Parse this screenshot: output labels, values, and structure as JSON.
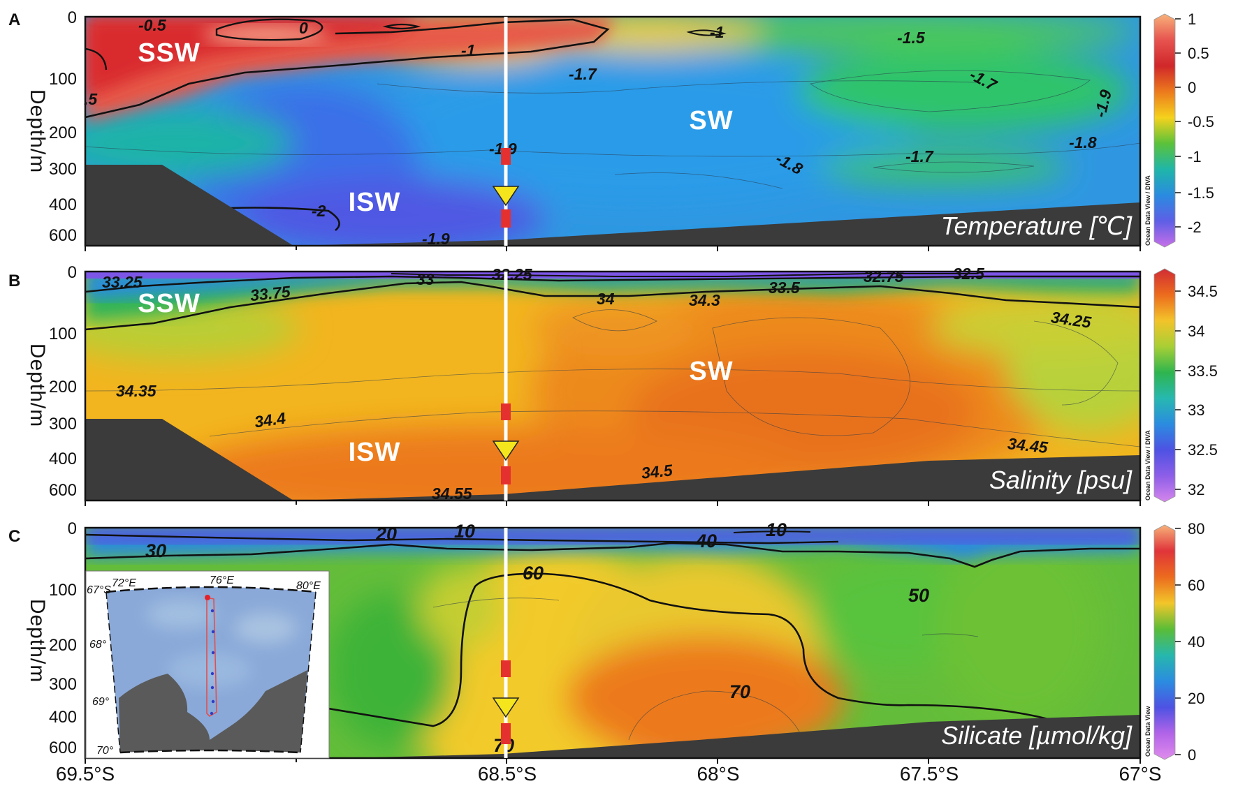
{
  "chart_data": [
    {
      "type": "heatmap",
      "panel_letter": "A",
      "title": "Temperature [℃]",
      "ylabel": "Depth/m",
      "xlabel": "",
      "x_ticks": [
        "69.5°S",
        "68.5°S",
        "68°S",
        "67.5°S",
        "67°S"
      ],
      "x_range": [
        69.5,
        67.0
      ],
      "y_ticks": [
        "0",
        "100",
        "200",
        "300",
        "400",
        "600"
      ],
      "y_range": [
        0,
        600
      ],
      "colorbar_ticks": [
        "1",
        "0.5",
        "0",
        "-0.5",
        "-1",
        "-1.5",
        "-2"
      ],
      "colorbar_range": [
        -2.2,
        1
      ],
      "colorbar_stops": [
        "#f7b27a",
        "#e7544f",
        "#d0272a",
        "#ec7a1d",
        "#f5d21d",
        "#5bc23a",
        "#1fb6a9",
        "#2a8be0",
        "#5e5fe6",
        "#c96fe8"
      ],
      "water_masses": [
        "SSW",
        "SW",
        "ISW"
      ],
      "contour_labels": [
        "-0.5",
        "0",
        "-1",
        "-1",
        "-1.5",
        "-1.7",
        "-1.7",
        "-1.9",
        "-1.9",
        "-1.8",
        "-1.8",
        "-1.7",
        "-2",
        "-1.9",
        ".5"
      ],
      "watermark": "Ocean Data View / DIVA"
    },
    {
      "type": "heatmap",
      "panel_letter": "B",
      "title": "Salinity [psu]",
      "ylabel": "Depth/m",
      "xlabel": "",
      "x_ticks": [
        "69.5°S",
        "68.5°S",
        "68°S",
        "67.5°S",
        "67°S"
      ],
      "x_range": [
        69.5,
        67.0
      ],
      "y_ticks": [
        "0",
        "100",
        "200",
        "300",
        "400",
        "600"
      ],
      "y_range": [
        0,
        600
      ],
      "colorbar_ticks": [
        "34.5",
        "34",
        "33.5",
        "33",
        "32.5",
        "32"
      ],
      "colorbar_range": [
        32,
        34.8
      ],
      "colorbar_stops": [
        "#d12c34",
        "#ec6b1e",
        "#f3c32a",
        "#a8cf35",
        "#2fb54e",
        "#27b8b0",
        "#2b8ce0",
        "#4e52e3",
        "#8e5ee8",
        "#d586ec"
      ],
      "water_masses": [
        "SSW",
        "SW",
        "ISW"
      ],
      "contour_labels": [
        "33.25",
        "33.75",
        "33",
        "32.25",
        "34",
        "34.3",
        "33.5",
        "32.75",
        "32.5",
        "34.25",
        "34.35",
        "34.4",
        "34.45",
        "34.5",
        "34.55"
      ],
      "watermark": "Ocean Data View / DIVA"
    },
    {
      "type": "heatmap",
      "panel_letter": "C",
      "title": "Silicate [µmol/kg]",
      "ylabel": "Depth/m",
      "xlabel": "",
      "x_ticks": [
        "69.5°S",
        "68.5°S",
        "68°S",
        "67.5°S",
        "67°S"
      ],
      "x_range": [
        69.5,
        67.0
      ],
      "y_ticks": [
        "0",
        "100",
        "200",
        "300",
        "400",
        "600"
      ],
      "y_range": [
        0,
        600
      ],
      "colorbar_ticks": [
        "80",
        "60",
        "40",
        "20",
        "0"
      ],
      "colorbar_range": [
        0,
        80
      ],
      "colorbar_stops": [
        "#f7b27a",
        "#e0343a",
        "#ec6b1e",
        "#f2c62a",
        "#5bbd37",
        "#27b7ac",
        "#2b8ce0",
        "#4e52e3",
        "#b264e8",
        "#e08cec"
      ],
      "contour_labels": [
        "30",
        "20",
        "10",
        "40",
        "10",
        "60",
        "50",
        "70",
        "70"
      ],
      "watermark": "Ocean Data View",
      "inset": {
        "lon_labels": [
          "72°E",
          "76°E",
          "80°E"
        ],
        "lat_labels": [
          "67°S",
          "68°",
          "69°",
          "70°"
        ]
      }
    }
  ]
}
